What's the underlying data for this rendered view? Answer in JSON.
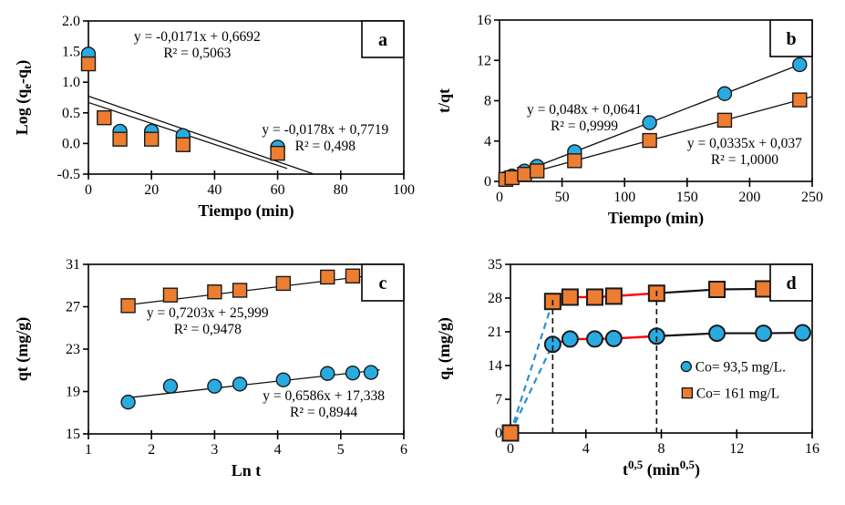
{
  "colors": {
    "blue": "#29ABE2",
    "orange": "#ED7D31",
    "red": "#FF0000",
    "black": "#111111",
    "blue_dash": "#2D8FCC",
    "marker_edge": "#1a1a1a"
  },
  "chart_data": [
    {
      "type": "scatter",
      "tag": "a",
      "xlabel_parts": [
        {
          "t": "Tiempo (min)"
        }
      ],
      "ylabel_parts": [
        {
          "t": "Log (q"
        },
        {
          "t": "e",
          "sub": true
        },
        {
          "t": "-q"
        },
        {
          "t": "t",
          "sub": true
        },
        {
          "t": ")"
        }
      ],
      "xlim": [
        0,
        100
      ],
      "ylim": [
        -0.5,
        2.0
      ],
      "xticks": [
        {
          "v": 0,
          "l": "0"
        },
        {
          "v": 20,
          "l": "20"
        },
        {
          "v": 40,
          "l": "40"
        },
        {
          "v": 60,
          "l": "60"
        },
        {
          "v": 80,
          "l": "80"
        },
        {
          "v": 100,
          "l": "100"
        }
      ],
      "yticks": [
        {
          "v": -0.5,
          "l": "-0.5"
        },
        {
          "v": 0,
          "l": "0.0"
        },
        {
          "v": 0.5,
          "l": "0.5"
        },
        {
          "v": 1.0,
          "l": "1.0"
        },
        {
          "v": 1.5,
          "l": "1.5"
        },
        {
          "v": 2.0,
          "l": "2.0"
        }
      ],
      "series": [
        {
          "marker": "circle",
          "color": "blue",
          "points": [
            [
              0,
              1.46
            ],
            [
              10,
              0.2
            ],
            [
              20,
              0.2
            ],
            [
              30,
              0.13
            ],
            [
              60,
              -0.06
            ]
          ]
        },
        {
          "marker": "square",
          "color": "orange",
          "points": [
            [
              0,
              1.3
            ],
            [
              5,
              0.42
            ],
            [
              10,
              0.07
            ],
            [
              20,
              0.07
            ],
            [
              30,
              -0.02
            ],
            [
              60,
              -0.16
            ]
          ]
        }
      ],
      "lines": [
        {
          "points": [
            [
              0,
              0.6692
            ],
            [
              63,
              -0.408
            ]
          ],
          "color": "black",
          "width": 1.3
        },
        {
          "points": [
            [
              0,
              0.7719
            ],
            [
              71.5,
              -0.5
            ]
          ],
          "color": "black",
          "width": 1.3
        }
      ],
      "annotations": [
        {
          "ax": 34.5,
          "ay": 1.75,
          "lines": [
            "y = -0,0171x + 0,6692",
            "R² = 0,5063"
          ]
        },
        {
          "ax": 75.1,
          "ay": 0.23,
          "lines": [
            "y = -0,0178x + 0,7719",
            "R² = 0,498"
          ]
        }
      ]
    },
    {
      "type": "scatter",
      "tag": "b",
      "xlabel_parts": [
        {
          "t": "Tiempo (min)"
        }
      ],
      "ylabel_parts": [
        {
          "t": "t/qt"
        }
      ],
      "xlim": [
        0,
        250
      ],
      "ylim": [
        0,
        16
      ],
      "xticks": [
        {
          "v": 0,
          "l": "0"
        },
        {
          "v": 50,
          "l": "50"
        },
        {
          "v": 100,
          "l": "100"
        },
        {
          "v": 150,
          "l": "150"
        },
        {
          "v": 200,
          "l": "200"
        },
        {
          "v": 250,
          "l": "250"
        }
      ],
      "yticks": [
        {
          "v": 0,
          "l": "0"
        },
        {
          "v": 4,
          "l": "4"
        },
        {
          "v": 8,
          "l": "8"
        },
        {
          "v": 12,
          "l": "12"
        },
        {
          "v": 16,
          "l": "16"
        }
      ],
      "series": [
        {
          "marker": "circle",
          "color": "blue",
          "points": [
            [
              5,
              0.3
            ],
            [
              10,
              0.54
            ],
            [
              20,
              1.02
            ],
            [
              30,
              1.5
            ],
            [
              60,
              2.94
            ],
            [
              120,
              5.82
            ],
            [
              180,
              8.7
            ],
            [
              240,
              11.58
            ]
          ]
        },
        {
          "marker": "square",
          "color": "orange",
          "points": [
            [
              5,
              0.2
            ],
            [
              10,
              0.37
            ],
            [
              20,
              0.71
            ],
            [
              30,
              1.04
            ],
            [
              60,
              2.05
            ],
            [
              120,
              4.06
            ],
            [
              180,
              6.07
            ],
            [
              240,
              8.08
            ]
          ]
        }
      ],
      "lines": [
        {
          "points": [
            [
              0,
              0.0641
            ],
            [
              245,
              11.82
            ]
          ],
          "color": "black",
          "width": 1.3
        },
        {
          "points": [
            [
              0,
              0.037
            ],
            [
              250,
              8.41
            ]
          ],
          "color": "black",
          "width": 1.3
        }
      ],
      "annotations": [
        {
          "ax": 67.8,
          "ay": 7.15,
          "lines": [
            "y = 0,048x + 0,0641",
            "R² = 0,9999"
          ]
        },
        {
          "ax": 196,
          "ay": 3.8,
          "lines": [
            "y = 0,0335x + 0,037",
            "R² = 1,0000"
          ]
        }
      ]
    },
    {
      "type": "scatter",
      "tag": "c",
      "xlabel_parts": [
        {
          "t": "Ln t"
        }
      ],
      "ylabel_parts": [
        {
          "t": "qt (mg/g)"
        }
      ],
      "xlim": [
        1,
        6
      ],
      "ylim": [
        15,
        31
      ],
      "xticks": [
        {
          "v": 1,
          "l": "1"
        },
        {
          "v": 2,
          "l": "2"
        },
        {
          "v": 3,
          "l": "3"
        },
        {
          "v": 4,
          "l": "4"
        },
        {
          "v": 5,
          "l": "5"
        },
        {
          "v": 6,
          "l": "6"
        }
      ],
      "yticks": [
        {
          "v": 15,
          "l": "15"
        },
        {
          "v": 19,
          "l": "19"
        },
        {
          "v": 23,
          "l": "23"
        },
        {
          "v": 27,
          "l": "27"
        },
        {
          "v": 31,
          "l": "31"
        }
      ],
      "series": [
        {
          "marker": "circle",
          "color": "blue",
          "points": [
            [
              1.63,
              18.0
            ],
            [
              2.3,
              19.5
            ],
            [
              3.0,
              19.5
            ],
            [
              3.4,
              19.7
            ],
            [
              4.09,
              20.1
            ],
            [
              4.79,
              20.7
            ],
            [
              5.19,
              20.75
            ],
            [
              5.48,
              20.8
            ]
          ]
        },
        {
          "marker": "square",
          "color": "orange",
          "points": [
            [
              1.63,
              27.1
            ],
            [
              2.3,
              28.1
            ],
            [
              3.0,
              28.4
            ],
            [
              3.4,
              28.55
            ],
            [
              4.09,
              29.2
            ],
            [
              4.79,
              29.8
            ],
            [
              5.19,
              29.9
            ],
            [
              5.48,
              29.95
            ]
          ]
        }
      ],
      "lines": [
        {
          "points": [
            [
              1.55,
              27.12
            ],
            [
              5.62,
              30.05
            ]
          ],
          "color": "black",
          "width": 1.3
        },
        {
          "points": [
            [
              1.55,
              18.36
            ],
            [
              5.62,
              21.04
            ]
          ],
          "color": "black",
          "width": 1.3
        }
      ],
      "annotations": [
        {
          "ax": 2.89,
          "ay": 26.45,
          "lines": [
            "y = 0,7203x + 25,999",
            "R² = 0,9478"
          ]
        },
        {
          "ax": 4.73,
          "ay": 18.6,
          "lines": [
            "y = 0,6586x + 17,338",
            "R² = 0,8944"
          ]
        }
      ]
    },
    {
      "type": "scatter",
      "tag": "d",
      "xlabel_parts": [
        {
          "t": "t"
        },
        {
          "t": "0,5",
          "sup": true
        },
        {
          "t": " (min"
        },
        {
          "t": "0,5",
          "sup": true
        },
        {
          "t": ")"
        }
      ],
      "ylabel_parts": [
        {
          "t": "q"
        },
        {
          "t": "t",
          "sub": true
        },
        {
          "t": " (mg/g)"
        }
      ],
      "xlim": [
        0,
        16
      ],
      "ylim": [
        0,
        35
      ],
      "xticks": [
        {
          "v": 0,
          "l": "0"
        },
        {
          "v": 4,
          "l": "4"
        },
        {
          "v": 8,
          "l": "8"
        },
        {
          "v": 12,
          "l": "12"
        },
        {
          "v": 16,
          "l": "16"
        }
      ],
      "yticks": [
        {
          "v": 0,
          "l": "0"
        },
        {
          "v": 7,
          "l": "7"
        },
        {
          "v": 14,
          "l": "14"
        },
        {
          "v": 21,
          "l": "21"
        },
        {
          "v": 28,
          "l": "28"
        },
        {
          "v": 35,
          "l": "35"
        }
      ],
      "series": [
        {
          "marker": "circle",
          "color": "blue",
          "big": true,
          "points": [
            [
              2.24,
              18.4
            ],
            [
              3.16,
              19.5
            ],
            [
              4.47,
              19.5
            ],
            [
              5.48,
              19.6
            ],
            [
              7.75,
              20.1
            ],
            [
              10.95,
              20.7
            ],
            [
              13.42,
              20.7
            ],
            [
              15.49,
              20.8
            ]
          ]
        },
        {
          "marker": "square",
          "color": "orange",
          "big": true,
          "points": [
            [
              0,
              0
            ],
            [
              2.24,
              27.3
            ],
            [
              3.16,
              28.2
            ],
            [
              4.47,
              28.2
            ],
            [
              5.48,
              28.4
            ],
            [
              7.75,
              29.0
            ],
            [
              10.95,
              29.8
            ],
            [
              13.42,
              29.9
            ]
          ]
        }
      ],
      "lines": [
        {
          "points": [
            [
              0,
              0
            ],
            [
              2.24,
              18.4
            ]
          ],
          "color": "blue_dash",
          "width": 2.2,
          "dash": "7,5"
        },
        {
          "points": [
            [
              0,
              0
            ],
            [
              2.24,
              27.3
            ]
          ],
          "color": "blue_dash",
          "width": 2.2,
          "dash": "7,5"
        },
        {
          "points": [
            [
              2.24,
              18.4
            ],
            [
              3.16,
              19.5
            ],
            [
              4.47,
              19.5
            ],
            [
              5.48,
              19.6
            ],
            [
              7.75,
              20.1
            ]
          ],
          "color": "red",
          "width": 2.4
        },
        {
          "points": [
            [
              2.24,
              27.3
            ],
            [
              3.16,
              28.2
            ],
            [
              4.47,
              28.2
            ],
            [
              5.48,
              28.4
            ],
            [
              7.75,
              29.0
            ]
          ],
          "color": "red",
          "width": 2.4
        },
        {
          "points": [
            [
              7.75,
              20.1
            ],
            [
              10.95,
              20.7
            ],
            [
              13.42,
              20.7
            ],
            [
              15.49,
              20.8
            ]
          ],
          "color": "black",
          "width": 2.2
        },
        {
          "points": [
            [
              7.75,
              29.0
            ],
            [
              10.95,
              29.8
            ],
            [
              13.42,
              29.9
            ]
          ],
          "color": "black",
          "width": 2.2
        }
      ],
      "overlines": [
        {
          "points": [
            [
              2.24,
              0
            ],
            [
              2.24,
              28.2
            ]
          ],
          "color": "black",
          "width": 1.6,
          "dash": "6,4"
        },
        {
          "points": [
            [
              7.75,
              0
            ],
            [
              7.75,
              29.8
            ]
          ],
          "color": "black",
          "width": 1.6,
          "dash": "6,4"
        }
      ],
      "annotations": [],
      "legend": [
        {
          "marker": "circle",
          "color": "blue",
          "label": "Co= 93,5 mg/L.",
          "ax": 9.32,
          "ay": 13.8
        },
        {
          "marker": "square",
          "color": "orange",
          "label": "Co= 161 mg/L",
          "ax": 9.37,
          "ay": 8.3
        }
      ]
    }
  ]
}
